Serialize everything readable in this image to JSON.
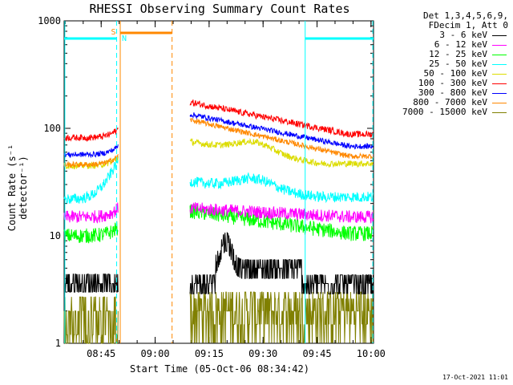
{
  "chart_data": {
    "type": "line",
    "title": "RHESSI Observing Summary Count Rates",
    "xlabel": "Start Time (05-Oct-06 08:34:42)",
    "ylabel": "Count Rate (s⁻¹ detector⁻¹)",
    "y_scale": "log",
    "ylim": [
      1,
      1000
    ],
    "xlim_minutes_after_0834_42": [
      0,
      86
    ],
    "x_tick_labels": [
      "08:45",
      "09:00",
      "09:15",
      "09:30",
      "09:45",
      "10:00"
    ],
    "y_tick_labels": [
      "1",
      "10",
      "100",
      "1000"
    ],
    "legend_header": [
      "Det 1,3,4,5,6,9,",
      "FDecim 1, Att 0"
    ],
    "legend_placement": "right",
    "series": [
      {
        "name": "3 - 6 keV",
        "color": "#000000"
      },
      {
        "name": "6 - 12 keV",
        "color": "#ff00ff"
      },
      {
        "name": "12 - 25 keV",
        "color": "#00ff00"
      },
      {
        "name": "25 - 50 keV",
        "color": "#00ffff"
      },
      {
        "name": "50 - 100 keV",
        "color": "#dcdc00"
      },
      {
        "name": "100 - 300 keV",
        "color": "#ff0000"
      },
      {
        "name": "300 - 800 keV",
        "color": "#0000ff"
      },
      {
        "name": "800 - 7000 keV",
        "color": "#ff8800"
      },
      {
        "name": "7000 - 15000 keV",
        "color": "#808000"
      }
    ],
    "annotations": [
      {
        "text": "S",
        "color": "#ff8800"
      },
      {
        "text": "N",
        "color": "#00ffff"
      }
    ],
    "timestamp": "17-Oct-2021 11:01"
  }
}
